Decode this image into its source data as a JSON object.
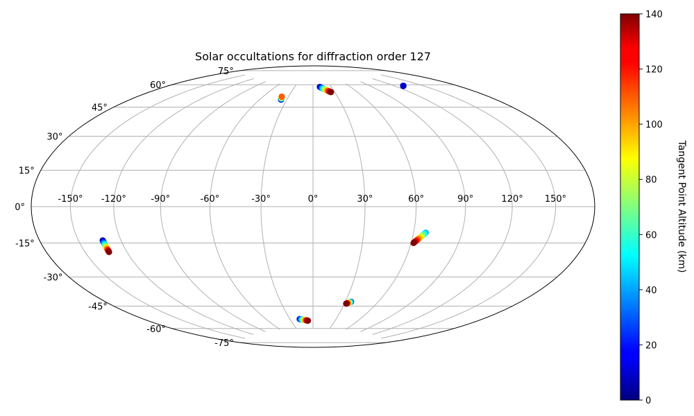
{
  "chart_data": {
    "type": "scatter",
    "projection": "hammer",
    "title": "Solar occultations for diffraction order 127",
    "grid": true,
    "lon_ticks": [
      -150,
      -120,
      -90,
      -60,
      -30,
      0,
      30,
      60,
      90,
      120,
      150
    ],
    "lat_ticks": [
      -75,
      -60,
      -45,
      -30,
      -15,
      0,
      15,
      30,
      45,
      60,
      75
    ],
    "lon_tick_labels": [
      "-150°",
      "-120°",
      "-90°",
      "-60°",
      "-30°",
      "0°",
      "30°",
      "60°",
      "90°",
      "120°",
      "150°"
    ],
    "lat_tick_labels": [
      "-75°",
      "-60°",
      "-45°",
      "-30°",
      "-15°",
      "0°",
      "15°",
      "30°",
      "45°",
      "60°",
      "75°"
    ],
    "colorbar": {
      "label": "Tangent Point Altitude (km)",
      "min": 0,
      "max": 140,
      "ticks": [
        0,
        20,
        40,
        60,
        80,
        100,
        120,
        140
      ],
      "colormap": "jet"
    },
    "tracks": [
      {
        "start": {
          "lon": -132.6,
          "lat": -16.4,
          "alt": 0
        },
        "end": {
          "lon": -132.6,
          "lat": -22.2,
          "alt": 140
        }
      },
      {
        "start": {
          "lon": -36.4,
          "lat": 64.5,
          "alt": 0
        },
        "end": {
          "lon": -38.1,
          "lat": 66.5,
          "alt": 110
        }
      },
      {
        "start": {
          "lon": 11.4,
          "lat": 73.9,
          "alt": 0
        },
        "end": {
          "lon": 24.9,
          "lat": 70.0,
          "alt": 140
        }
      },
      {
        "start": {
          "lon": 130.0,
          "lat": 67.6,
          "alt": 0
        },
        "end": {
          "lon": 130.0,
          "lat": 67.6,
          "alt": 10
        }
      },
      {
        "start": {
          "lon": 67.4,
          "lat": -14.4,
          "alt": 40
        },
        "end": {
          "lon": 61.5,
          "lat": -20.3,
          "alt": 140
        }
      },
      {
        "start": {
          "lon": 35.3,
          "lat": -56.6,
          "alt": 20
        },
        "end": {
          "lon": 31.6,
          "lat": -57.9,
          "alt": 140
        }
      },
      {
        "start": {
          "lon": -17.4,
          "lat": -68.7,
          "alt": 10
        },
        "end": {
          "lon": -6.9,
          "lat": -69.9,
          "alt": 140
        }
      }
    ]
  }
}
